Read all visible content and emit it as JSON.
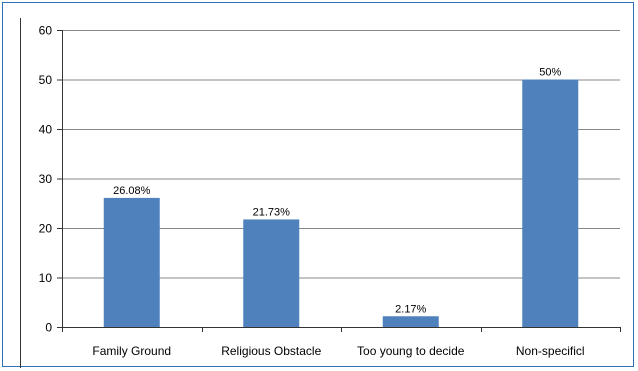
{
  "chart_data": {
    "type": "bar",
    "categories": [
      "Family Ground",
      "Religious Obstacle",
      "Too young to decide",
      "Non-specificl"
    ],
    "values": [
      26.08,
      21.73,
      2.17,
      50
    ],
    "data_labels": [
      "26.08%",
      "21.73%",
      "2.17%",
      "50%"
    ],
    "title": "",
    "xlabel": "",
    "ylabel": "",
    "ylim": [
      0,
      60
    ],
    "yticks": [
      0,
      10,
      20,
      30,
      40,
      50,
      60
    ],
    "grid": true,
    "legend": "none",
    "colors": {
      "bar": "#4f81bd",
      "grid": "#888888",
      "axis": "#333333",
      "frame": "#2f6fb3"
    }
  }
}
